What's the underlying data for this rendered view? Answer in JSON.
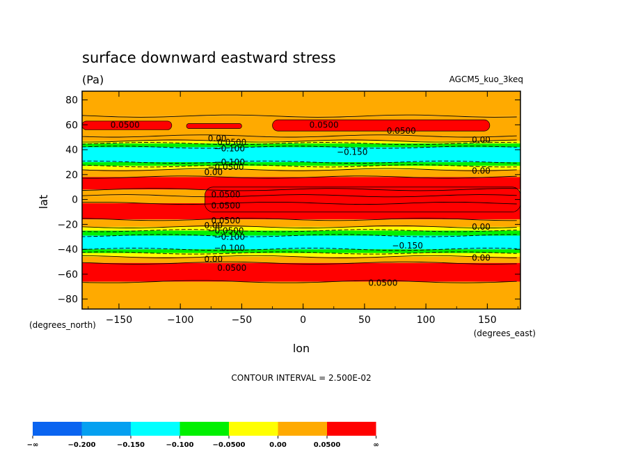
{
  "chart_data": {
    "type": "heatmap",
    "title": "surface downward eastward stress",
    "units": "(Pa)",
    "model_label": "AGCM5_kuo_3keq",
    "xlabel": "lon",
    "ylabel": "lat",
    "x_units_note": "(degrees_east)",
    "y_units_note": "(degrees_north)",
    "xlim": [
      -180,
      177
    ],
    "ylim": [
      -88,
      87
    ],
    "x_ticks": [
      -150,
      -100,
      -50,
      0,
      50,
      100,
      150
    ],
    "y_ticks": [
      80,
      60,
      40,
      20,
      0,
      -20,
      -40,
      -60,
      -80
    ],
    "x_tick_labels": [
      "−150",
      "−100",
      "−50",
      "0",
      "50",
      "100",
      "150"
    ],
    "y_tick_labels": [
      "80",
      "60",
      "40",
      "20",
      "0",
      "−20",
      "−40",
      "−60",
      "−80"
    ],
    "contour_interval_text": "CONTOUR INTERVAL = 2.500E-02",
    "colorbar": {
      "colors": [
        "#0a64f0",
        "#05a0f0",
        "#00ffff",
        "#00f000",
        "#ffff00",
        "#ffaa00",
        "#ff0000"
      ],
      "labels": [
        "−∞",
        "−0.200",
        "−0.150",
        "−0.100",
        "−0.0500",
        "0.00",
        "0.0500",
        "∞"
      ]
    },
    "bands": [
      {
        "lat_top": 87,
        "lat_bottom": 67,
        "color": "#ffaa00"
      },
      {
        "lat_top": 67,
        "lat_bottom": 51,
        "color": "#ffaa00"
      },
      {
        "lat_top": 51,
        "lat_bottom": 47,
        "color": "#ffaa00"
      },
      {
        "lat_top": 47,
        "lat_bottom": 45,
        "color": "#ffff00"
      },
      {
        "lat_top": 45,
        "lat_bottom": 42,
        "color": "#00f000"
      },
      {
        "lat_top": 42,
        "lat_bottom": 30,
        "color": "#00ffff"
      },
      {
        "lat_top": 30,
        "lat_bottom": 27,
        "color": "#00f000"
      },
      {
        "lat_top": 27,
        "lat_bottom": 24,
        "color": "#ffff00"
      },
      {
        "lat_top": 24,
        "lat_bottom": 18,
        "color": "#ffaa00"
      },
      {
        "lat_top": 18,
        "lat_bottom": 8,
        "color": "#ff0000"
      },
      {
        "lat_top": 8,
        "lat_bottom": 3,
        "color": "#ffaa00"
      },
      {
        "lat_top": 3,
        "lat_bottom": -3,
        "color": "#ffaa00"
      },
      {
        "lat_top": -3,
        "lat_bottom": -16,
        "color": "#ff0000"
      },
      {
        "lat_top": -16,
        "lat_bottom": -22,
        "color": "#ffaa00"
      },
      {
        "lat_top": -22,
        "lat_bottom": -25,
        "color": "#ffff00"
      },
      {
        "lat_top": -25,
        "lat_bottom": -29,
        "color": "#00f000"
      },
      {
        "lat_top": -29,
        "lat_bottom": -40,
        "color": "#00ffff"
      },
      {
        "lat_top": -40,
        "lat_bottom": -43,
        "color": "#00f000"
      },
      {
        "lat_top": -43,
        "lat_bottom": -46,
        "color": "#ffff00"
      },
      {
        "lat_top": -46,
        "lat_bottom": -51,
        "color": "#ffaa00"
      },
      {
        "lat_top": -51,
        "lat_bottom": -66,
        "color": "#ff0000"
      },
      {
        "lat_top": -66,
        "lat_bottom": -88,
        "color": "#ffaa00"
      }
    ],
    "patches": [
      {
        "lon_min": -180,
        "lon_max": -107,
        "lat_min": 56,
        "lat_max": 63,
        "color": "#ff0000"
      },
      {
        "lon_min": -95,
        "lon_max": -50,
        "lat_min": 57,
        "lat_max": 61,
        "color": "#ff0000"
      },
      {
        "lon_min": -25,
        "lon_max": 152,
        "lat_min": 55,
        "lat_max": 64,
        "color": "#ff0000"
      },
      {
        "lon_min": -20,
        "lon_max": -5,
        "lat_min": -2,
        "lat_max": 2,
        "color": "#ffff00"
      },
      {
        "lon_min": -80,
        "lon_max": 177,
        "lat_min": -10,
        "lat_max": 10,
        "color": "#ff0000"
      }
    ],
    "contour_labels": [
      {
        "text": "0.0500",
        "lon": -145,
        "lat": 60
      },
      {
        "text": "0.0500",
        "lon": 17,
        "lat": 60
      },
      {
        "text": "0.0500",
        "lon": 80,
        "lat": 55
      },
      {
        "text": "0.00",
        "lon": -70,
        "lat": 49
      },
      {
        "text": "0.0500",
        "lon": -58,
        "lat": 46
      },
      {
        "text": "−0.100",
        "lon": -60,
        "lat": 41
      },
      {
        "text": "−0.150",
        "lon": 40,
        "lat": 38
      },
      {
        "text": "0.00",
        "lon": 145,
        "lat": 48
      },
      {
        "text": "−0.100",
        "lon": -60,
        "lat": 30
      },
      {
        "text": "−0.0500",
        "lon": -63,
        "lat": 26
      },
      {
        "text": "0.00",
        "lon": -73,
        "lat": 22
      },
      {
        "text": "0.00",
        "lon": 145,
        "lat": 23
      },
      {
        "text": "0.0500",
        "lon": -63,
        "lat": 4
      },
      {
        "text": "0.0500",
        "lon": -63,
        "lat": -5
      },
      {
        "text": "0.0500",
        "lon": -63,
        "lat": -17
      },
      {
        "text": "0.00",
        "lon": -73,
        "lat": -21
      },
      {
        "text": "−0.0500",
        "lon": -63,
        "lat": -25
      },
      {
        "text": "−0.100",
        "lon": -60,
        "lat": -30
      },
      {
        "text": "−0.150",
        "lon": 85,
        "lat": -37
      },
      {
        "text": "0.00",
        "lon": 145,
        "lat": -22
      },
      {
        "text": "−0.100",
        "lon": -60,
        "lat": -39
      },
      {
        "text": "0.00",
        "lon": -73,
        "lat": -48
      },
      {
        "text": "0.0500",
        "lon": -58,
        "lat": -55
      },
      {
        "text": "0.0500",
        "lon": 65,
        "lat": -67
      },
      {
        "text": "0.00",
        "lon": 145,
        "lat": -47
      }
    ]
  }
}
